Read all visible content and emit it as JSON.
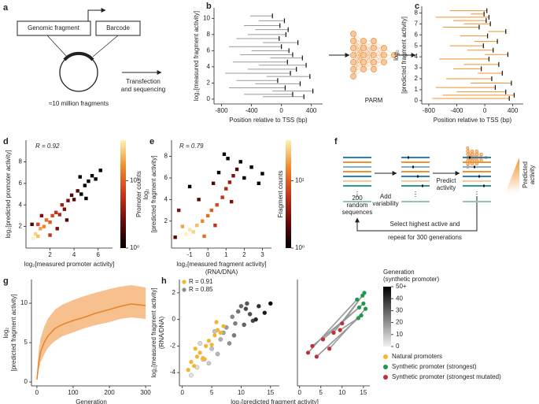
{
  "panel_labels": [
    "a",
    "b",
    "c",
    "d",
    "e",
    "f",
    "g",
    "h"
  ],
  "diagram_a": {
    "fragment": "Genomic fragment",
    "barcode": "Barcode",
    "library": "≈10 million fragments",
    "step": [
      "Transfection",
      "and sequencing"
    ]
  },
  "model": {
    "label": "PARM"
  },
  "diagram_f": {
    "start": [
      "200",
      "random",
      "sequences"
    ],
    "step1": [
      "Add",
      "variability"
    ],
    "step2": [
      "Predict",
      "activity"
    ],
    "output": [
      "Predicted",
      "activity"
    ],
    "loop": [
      "Select highest active and",
      "repeat for 300 generations"
    ]
  },
  "chart_data": [
    {
      "type": "segments",
      "x_label": [
        "Position relative to TSS (bp)"
      ],
      "y_label": [
        "log₂[measured fragment activity]"
      ],
      "xlim": [
        -900,
        550
      ],
      "ylim": [
        -0.6,
        11.3
      ],
      "xticks": [
        -800,
        -400,
        0,
        400
      ],
      "yticks": [
        0,
        2,
        4,
        6,
        8,
        10
      ],
      "color": "#9a9a9a",
      "tick_color": "#111111",
      "x_start": [
        -250,
        -500,
        -120,
        -700,
        -350,
        -600,
        -200,
        -750,
        -450,
        -300,
        -650,
        -150,
        -550,
        -400,
        -700,
        -250,
        -600,
        -450,
        -350,
        -500,
        -300,
        -420
      ],
      "x_end": [
        300,
        150,
        420,
        50,
        250,
        -50,
        380,
        120,
        200,
        330,
        80,
        280,
        150,
        100,
        0,
        220,
        -30,
        60,
        90,
        -20,
        40,
        -120
      ],
      "y": [
        0.3,
        0.6,
        1.0,
        1.4,
        1.9,
        2.3,
        2.8,
        3.2,
        3.7,
        4.2,
        4.6,
        5.1,
        5.5,
        6.0,
        6.5,
        7.0,
        7.5,
        8.0,
        8.6,
        9.1,
        9.7,
        10.3
      ]
    },
    {
      "type": "segments",
      "x_label": [
        "Position relative to TSS (bp)"
      ],
      "y_label": [
        "log₂",
        "[predicted fragment activity]"
      ],
      "xlim": [
        -900,
        550
      ],
      "ylim": [
        -0.3,
        8.6
      ],
      "xticks": [
        -800,
        -400,
        0,
        400
      ],
      "yticks": [
        0,
        1,
        2,
        3,
        4,
        5,
        6,
        7,
        8
      ],
      "color": "#f0922e",
      "tick_color": "#111111",
      "x_start": [
        -750,
        -600,
        -400,
        -700,
        -200,
        -550,
        -100,
        -450,
        -300,
        -650,
        0,
        -250,
        -500,
        -150,
        -350,
        50,
        -600,
        -300,
        -450,
        -700,
        -200,
        -500
      ],
      "x_end": [
        350,
        420,
        300,
        150,
        380,
        100,
        250,
        -50,
        200,
        60,
        330,
        120,
        -20,
        180,
        40,
        300,
        -80,
        80,
        20,
        60,
        -10,
        30
      ],
      "y": [
        0.2,
        0.5,
        0.8,
        1.2,
        1.6,
        2.0,
        2.5,
        2.9,
        3.3,
        3.8,
        4.2,
        4.6,
        5.0,
        5.4,
        5.9,
        6.3,
        6.7,
        7.0,
        7.3,
        7.6,
        7.9,
        8.2
      ]
    },
    {
      "type": "density",
      "annotation": "R = 0.92",
      "x_label": [
        "log₂[measured promoter activity]"
      ],
      "y_label": [
        "log₂[predicted promoter activity]"
      ],
      "xlim": [
        0,
        7.2
      ],
      "ylim": [
        0,
        10
      ],
      "xticks": [
        2,
        4,
        6
      ],
      "yticks": [
        2,
        4,
        6,
        8
      ],
      "x": [
        0.6,
        0.8,
        1.0,
        1.2,
        1.5,
        1.7,
        2.0,
        2.2,
        2.5,
        2.8,
        3.0,
        3.2,
        3.5,
        3.8,
        4.0,
        4.3,
        4.6,
        4.9,
        5.2,
        5.5,
        5.8,
        6.2,
        1.3,
        2.6,
        3.4,
        0.5,
        4.5,
        5.0,
        2.0,
        1.0
      ],
      "y": [
        0.9,
        1.3,
        1.1,
        1.8,
        2.0,
        2.6,
        2.4,
        3.0,
        3.3,
        3.1,
        4.0,
        3.6,
        4.4,
        4.9,
        4.5,
        5.3,
        5.0,
        5.8,
        6.2,
        6.7,
        6.4,
        7.2,
        3.0,
        1.8,
        2.6,
        2.2,
        6.6,
        4.6,
        1.2,
        2.2
      ],
      "counts": [
        40,
        30,
        25,
        20,
        15,
        12,
        10,
        8,
        6,
        5,
        4,
        3,
        3,
        2,
        2,
        2,
        1,
        1,
        1,
        1,
        1,
        1,
        3,
        3,
        2,
        2,
        1,
        1,
        6,
        8
      ],
      "colorbar": {
        "label": "Promoter counts",
        "clim": [
          1,
          40
        ],
        "log": true,
        "ticks": [
          {
            "value": 1,
            "label": "10⁰"
          },
          {
            "value": 10,
            "label": "10¹"
          }
        ]
      }
    },
    {
      "type": "density",
      "annotation": "R = 0.79",
      "x_label": [
        "log₂[measured fragment activity]",
        "(RNA/DNA)"
      ],
      "y_label": [
        "log₂",
        "[predicted fragment activity]"
      ],
      "xlim": [
        -2,
        3.5
      ],
      "ylim": [
        -0.5,
        9.5
      ],
      "xticks": [
        -1,
        0,
        1,
        2,
        3
      ],
      "yticks": [
        2,
        4,
        6,
        8
      ],
      "x": [
        -1.2,
        -1.0,
        -0.8,
        -0.6,
        -1.4,
        -0.3,
        0,
        0.2,
        0.5,
        0.8,
        1.0,
        1.2,
        1.4,
        1.6,
        1.8,
        2.0,
        2.4,
        -1.6,
        -1.8,
        -0.5,
        0.3,
        0.6,
        1.1,
        2.8,
        -0.2,
        0.4,
        1.3,
        -1.0,
        0.9,
        3.0
      ],
      "y": [
        0.8,
        1.2,
        1.0,
        1.6,
        1.5,
        2.0,
        2.5,
        3.0,
        3.5,
        4.2,
        5.0,
        5.6,
        6.2,
        6.8,
        7.5,
        6.0,
        7.0,
        3.0,
        0.5,
        4.0,
        5.5,
        6.5,
        7.8,
        5.5,
        0.6,
        1.6,
        3.8,
        5.2,
        8.2,
        6.4
      ],
      "counts": [
        40,
        35,
        30,
        25,
        20,
        15,
        12,
        10,
        8,
        6,
        5,
        4,
        3,
        2,
        1,
        1,
        1,
        3,
        2,
        2,
        2,
        1,
        1,
        1,
        12,
        6,
        3,
        1,
        1,
        1
      ],
      "colorbar": {
        "label": "Fragment counts",
        "clim": [
          1,
          40
        ],
        "log": true,
        "ticks": [
          {
            "value": 1,
            "label": "10⁰"
          },
          {
            "value": 10,
            "label": "10¹"
          }
        ]
      }
    },
    {
      "type": "line_band",
      "x_label": [
        "Generation"
      ],
      "y_label": [
        "log₂",
        "[predicted fragment activity]"
      ],
      "xlim": [
        -15,
        315
      ],
      "ylim": [
        -0.5,
        13
      ],
      "xticks": [
        0,
        100,
        200,
        300
      ],
      "yticks": [
        0,
        5,
        10
      ],
      "color": "#e8832a",
      "band_color": "#f7c08f",
      "x": [
        0,
        5,
        10,
        20,
        30,
        40,
        50,
        70,
        100,
        130,
        160,
        200,
        230,
        260,
        300
      ],
      "values": [
        0.3,
        2.5,
        3.8,
        5.0,
        5.8,
        6.3,
        6.8,
        7.3,
        7.8,
        8.2,
        8.7,
        9.2,
        9.6,
        9.9,
        9.7
      ],
      "lower": [
        0.1,
        1.5,
        2.5,
        3.5,
        4.3,
        4.8,
        5.2,
        5.8,
        6.3,
        6.8,
        7.2,
        7.6,
        8.0,
        8.2,
        8.0
      ],
      "upper": [
        0.6,
        4.0,
        5.5,
        7.0,
        8.0,
        8.6,
        9.2,
        9.8,
        10.4,
        10.9,
        11.3,
        11.8,
        12.1,
        12.3,
        12.0
      ]
    },
    {
      "type": "scatter",
      "x_label": [
        "log₂[predicted fragment activity]"
      ],
      "y_label": [
        "log₂[measured fragment activity]",
        "(RNA/DNA)"
      ],
      "xlim": [
        -0.5,
        16.5
      ],
      "ylim": [
        -5,
        3
      ],
      "xticks": [
        0,
        5,
        10,
        15
      ],
      "yticks": [
        -4,
        -2,
        0,
        2
      ],
      "series": [
        {
          "name": "Natural promoters",
          "annotation": "R = 0.91",
          "color": "#f2b632",
          "x": [
            1.0,
            1.5,
            2.0,
            2.5,
            3.0,
            3.5,
            4.0,
            4.5,
            5.0,
            5.5,
            6.0,
            6.5,
            7.0,
            2.2,
            3.8,
            5.8
          ],
          "y": [
            -3.8,
            -3.2,
            -3.5,
            -2.8,
            -2.5,
            -2.9,
            -2.0,
            -1.6,
            -1.9,
            -1.2,
            -0.8,
            -1.0,
            -0.5,
            -2.2,
            -3.0,
            -0.2
          ]
        },
        {
          "annotation": "R = 0.85",
          "color": "#8c8c8c",
          "x": [
            1.5,
            2.5,
            3.5,
            4.5,
            5.0,
            6.0,
            6.5,
            7.0,
            7.5,
            8.0,
            8.5,
            9.0,
            9.5,
            10.0,
            10.5,
            11.0,
            11.5,
            12.0,
            13.0,
            14.0,
            15.0,
            3.0,
            5.5,
            8.8,
            10.8,
            12.5
          ],
          "y": [
            -4.2,
            -3.6,
            -3.0,
            -3.3,
            -2.2,
            -2.6,
            -1.5,
            -1.0,
            -0.6,
            -1.8,
            0.2,
            -0.3,
            0.6,
            1.0,
            -0.4,
            1.2,
            0.4,
            -0.1,
            1.0,
            0.5,
            1.2,
            -1.8,
            -0.9,
            -1.2,
            0.8,
            0.0
          ],
          "generation": [
            2,
            4,
            6,
            8,
            10,
            12,
            14,
            16,
            18,
            20,
            22,
            24,
            26,
            28,
            30,
            32,
            34,
            36,
            40,
            45,
            50,
            5,
            10,
            25,
            35,
            42
          ]
        }
      ]
    },
    {
      "type": "paired",
      "xlim": [
        -0.5,
        16.5
      ],
      "ylim": [
        -5,
        3
      ],
      "xticks": [
        0,
        5,
        10,
        15
      ],
      "pair_color": "#999999",
      "series": [
        {
          "name": "Synthetic promoter (strongest)",
          "color": "#1e9a4b",
          "x": [
            13.5,
            14.0,
            14.5,
            15.0,
            15.5,
            14.8,
            13.8,
            15.2
          ],
          "y": [
            1.5,
            0.9,
            0.3,
            1.2,
            0.8,
            1.8,
            0.1,
            2.0
          ]
        },
        {
          "name": "Synthetic promoter (strongest mutated)",
          "color": "#c0303a",
          "x": [
            2.0,
            3.0,
            4.0,
            5.5,
            7.0,
            8.0,
            9.5,
            10.0
          ],
          "y": [
            -2.5,
            -2.0,
            -2.8,
            -1.5,
            -2.2,
            -1.0,
            -0.8,
            -0.3
          ]
        }
      ]
    }
  ],
  "legend_h": {
    "title": [
      "Generation",
      "(synthetic promoter)"
    ],
    "clim": [
      0,
      50
    ],
    "ticks": [
      0,
      10,
      20,
      30,
      40,
      {
        "value": 50,
        "label": "50+"
      }
    ]
  }
}
